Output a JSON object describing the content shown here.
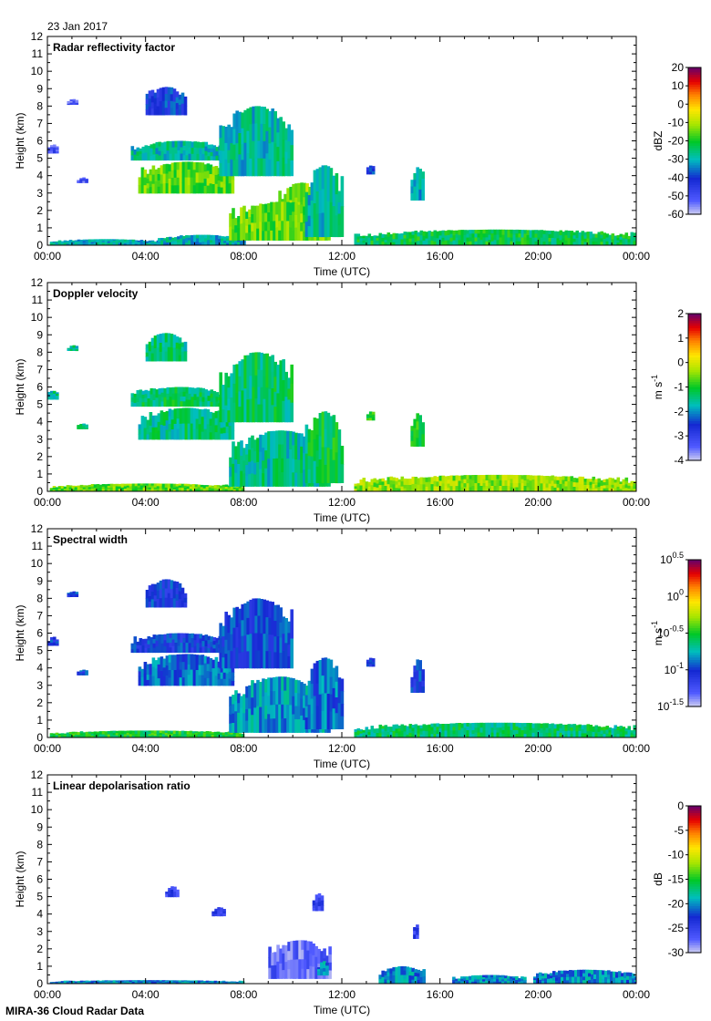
{
  "date_label": "23 Jan 2017",
  "footer_label": "MIRA-36 Cloud Radar Data",
  "chart_data": [
    {
      "type": "heatmap",
      "title": "Radar reflectivity factor",
      "xlabel": "Time (UTC)",
      "ylabel": "Height (km)",
      "xticks": [
        "00:00",
        "04:00",
        "08:00",
        "12:00",
        "16:00",
        "20:00",
        "00:00"
      ],
      "yticks": [
        "0",
        "1",
        "2",
        "3",
        "4",
        "5",
        "6",
        "7",
        "8",
        "9",
        "10",
        "11",
        "12"
      ],
      "ylim": [
        0,
        12
      ],
      "xlim_hours": [
        0,
        24
      ],
      "colorbar": {
        "label": "dBZ",
        "ticks": [
          "20",
          "10",
          "0",
          "-10",
          "-20",
          "-30",
          "-40",
          "-50",
          "-60"
        ],
        "min": -60,
        "max": 20
      },
      "blobs": [
        {
          "t0": 0.1,
          "t1": 4.5,
          "h0": 0.0,
          "h1": 0.35,
          "v": -30
        },
        {
          "t0": 4.5,
          "t1": 8.0,
          "h0": 0.0,
          "h1": 0.6,
          "v": -30
        },
        {
          "t0": 12.5,
          "t1": 24.0,
          "h0": 0.0,
          "h1": 0.9,
          "v": -22
        },
        {
          "t0": 3.4,
          "t1": 7.3,
          "h0": 4.9,
          "h1": 6.0,
          "v": -28
        },
        {
          "t0": 3.7,
          "t1": 7.6,
          "h0": 3.0,
          "h1": 4.8,
          "v": -15
        },
        {
          "t0": 4.0,
          "t1": 5.6,
          "h0": 7.5,
          "h1": 9.1,
          "v": -40
        },
        {
          "t0": 7.0,
          "t1": 10.0,
          "h0": 4.0,
          "h1": 8.0,
          "v": -28
        },
        {
          "t0": 9.3,
          "t1": 11.3,
          "h0": 0.3,
          "h1": 3.6,
          "v": -12
        },
        {
          "t0": 7.4,
          "t1": 11.5,
          "h0": 0.3,
          "h1": 2.5,
          "v": -15
        },
        {
          "t0": 10.5,
          "t1": 12.0,
          "h0": 0.5,
          "h1": 4.6,
          "v": -28
        },
        {
          "t0": 14.8,
          "t1": 15.3,
          "h0": 2.6,
          "h1": 4.5,
          "v": -30
        },
        {
          "t0": 13.0,
          "t1": 13.3,
          "h0": 4.1,
          "h1": 4.6,
          "v": -40
        },
        {
          "t0": 1.2,
          "t1": 1.6,
          "h0": 3.6,
          "h1": 3.9,
          "v": -50
        },
        {
          "t0": 0.8,
          "t1": 1.2,
          "h0": 8.1,
          "h1": 8.4,
          "v": -50
        },
        {
          "t0": 0.0,
          "t1": 0.35,
          "h0": 5.3,
          "h1": 5.8,
          "v": -50
        }
      ]
    },
    {
      "type": "heatmap",
      "title": "Doppler velocity",
      "xlabel": "Time (UTC)",
      "ylabel": "Height (km)",
      "xticks": [
        "00:00",
        "04:00",
        "08:00",
        "12:00",
        "16:00",
        "20:00",
        "00:00"
      ],
      "yticks": [
        "0",
        "1",
        "2",
        "3",
        "4",
        "5",
        "6",
        "7",
        "8",
        "9",
        "10",
        "11",
        "12"
      ],
      "ylim": [
        0,
        12
      ],
      "xlim_hours": [
        0,
        24
      ],
      "colorbar": {
        "label": "m s-1",
        "ticks": [
          "2",
          "1",
          "0",
          "-1",
          "-2",
          "-3",
          "-4"
        ],
        "min": -4,
        "max": 2
      },
      "blobs": [
        {
          "t0": 0.1,
          "t1": 8.0,
          "h0": 0.0,
          "h1": 0.45,
          "v": -0.6
        },
        {
          "t0": 12.5,
          "t1": 24.0,
          "h0": 0.0,
          "h1": 0.95,
          "v": -0.4
        },
        {
          "t0": 3.4,
          "t1": 7.3,
          "h0": 4.9,
          "h1": 6.0,
          "v": -1.3
        },
        {
          "t0": 3.7,
          "t1": 7.6,
          "h0": 3.0,
          "h1": 4.8,
          "v": -1.4
        },
        {
          "t0": 4.0,
          "t1": 5.6,
          "h0": 7.5,
          "h1": 9.1,
          "v": -1.4
        },
        {
          "t0": 7.0,
          "t1": 10.0,
          "h0": 4.0,
          "h1": 8.0,
          "v": -1.3
        },
        {
          "t0": 7.4,
          "t1": 11.5,
          "h0": 0.3,
          "h1": 3.5,
          "v": -1.5
        },
        {
          "t0": 10.5,
          "t1": 12.0,
          "h0": 0.5,
          "h1": 4.6,
          "v": -1.2
        },
        {
          "t0": 14.8,
          "t1": 15.3,
          "h0": 2.6,
          "h1": 4.5,
          "v": -1.0
        },
        {
          "t0": 13.0,
          "t1": 13.3,
          "h0": 4.1,
          "h1": 4.6,
          "v": -1.0
        },
        {
          "t0": 1.2,
          "t1": 1.6,
          "h0": 3.6,
          "h1": 3.9,
          "v": -1.5
        },
        {
          "t0": 0.8,
          "t1": 1.2,
          "h0": 8.1,
          "h1": 8.4,
          "v": -1.5
        },
        {
          "t0": 0.0,
          "t1": 0.35,
          "h0": 5.3,
          "h1": 5.8,
          "v": -1.5
        }
      ]
    },
    {
      "type": "heatmap",
      "title": "Spectral width",
      "xlabel": "Time (UTC)",
      "ylabel": "Height (km)",
      "xticks": [
        "00:00",
        "04:00",
        "08:00",
        "12:00",
        "16:00",
        "20:00",
        "00:00"
      ],
      "yticks": [
        "0",
        "1",
        "2",
        "3",
        "4",
        "5",
        "6",
        "7",
        "8",
        "9",
        "10",
        "11",
        "12"
      ],
      "ylim": [
        0,
        12
      ],
      "xlim_hours": [
        0,
        24
      ],
      "colorbar": {
        "label": "m s-1",
        "ticks": [
          "10^0.5",
          "10^0",
          "10^-0.5",
          "10^-1",
          "10^-1.5"
        ],
        "min": -1.5,
        "max": 0.5
      },
      "blobs": [
        {
          "t0": 0.1,
          "t1": 8.0,
          "h0": 0.0,
          "h1": 0.4,
          "v": -0.5
        },
        {
          "t0": 12.5,
          "t1": 24.0,
          "h0": 0.0,
          "h1": 0.85,
          "v": -0.6
        },
        {
          "t0": 3.4,
          "t1": 7.3,
          "h0": 4.9,
          "h1": 6.0,
          "v": -1.0
        },
        {
          "t0": 3.7,
          "t1": 7.6,
          "h0": 3.0,
          "h1": 4.8,
          "v": -0.9
        },
        {
          "t0": 4.0,
          "t1": 5.6,
          "h0": 7.5,
          "h1": 9.1,
          "v": -1.0
        },
        {
          "t0": 7.0,
          "t1": 10.0,
          "h0": 4.0,
          "h1": 8.0,
          "v": -0.95
        },
        {
          "t0": 7.4,
          "t1": 11.5,
          "h0": 0.3,
          "h1": 3.5,
          "v": -0.8
        },
        {
          "t0": 10.5,
          "t1": 12.0,
          "h0": 0.5,
          "h1": 4.6,
          "v": -0.9
        },
        {
          "t0": 14.8,
          "t1": 15.3,
          "h0": 2.6,
          "h1": 4.5,
          "v": -1.0
        },
        {
          "t0": 13.0,
          "t1": 13.3,
          "h0": 4.1,
          "h1": 4.6,
          "v": -1.0
        },
        {
          "t0": 1.2,
          "t1": 1.6,
          "h0": 3.6,
          "h1": 3.9,
          "v": -1.0
        },
        {
          "t0": 0.8,
          "t1": 1.2,
          "h0": 8.1,
          "h1": 8.4,
          "v": -1.0
        },
        {
          "t0": 0.0,
          "t1": 0.35,
          "h0": 5.3,
          "h1": 5.8,
          "v": -1.0
        }
      ]
    },
    {
      "type": "heatmap",
      "title": "Linear depolarisation ratio",
      "xlabel": "Time (UTC)",
      "ylabel": "Height (km)",
      "xticks": [
        "00:00",
        "04:00",
        "08:00",
        "12:00",
        "16:00",
        "20:00",
        "00:00"
      ],
      "yticks": [
        "0",
        "1",
        "2",
        "3",
        "4",
        "5",
        "6",
        "7",
        "8",
        "9",
        "10",
        "11",
        "12"
      ],
      "ylim": [
        0,
        12
      ],
      "xlim_hours": [
        0,
        24
      ],
      "colorbar": {
        "label": "dB",
        "ticks": [
          "0",
          "-5",
          "-10",
          "-15",
          "-20",
          "-25",
          "-30"
        ],
        "min": -30,
        "max": 0
      },
      "blobs": [
        {
          "t0": 0.1,
          "t1": 8.0,
          "h0": 0.0,
          "h1": 0.2,
          "v": -20
        },
        {
          "t0": 13.5,
          "t1": 15.3,
          "h0": 0.0,
          "h1": 1.0,
          "v": -20
        },
        {
          "t0": 19.8,
          "t1": 24.0,
          "h0": 0.0,
          "h1": 0.8,
          "v": -20
        },
        {
          "t0": 16.5,
          "t1": 19.5,
          "h0": 0.0,
          "h1": 0.5,
          "v": -20
        },
        {
          "t0": 9.0,
          "t1": 11.5,
          "h0": 0.3,
          "h1": 2.5,
          "v": -27
        },
        {
          "t0": 4.8,
          "t1": 5.3,
          "h0": 5.0,
          "h1": 5.6,
          "v": -25
        },
        {
          "t0": 6.7,
          "t1": 7.2,
          "h0": 3.9,
          "h1": 4.4,
          "v": -25
        },
        {
          "t0": 10.8,
          "t1": 11.2,
          "h0": 4.2,
          "h1": 5.2,
          "v": -25
        },
        {
          "t0": 11.0,
          "t1": 11.4,
          "h0": 0.5,
          "h1": 1.3,
          "v": -20
        },
        {
          "t0": 14.9,
          "t1": 15.1,
          "h0": 2.6,
          "h1": 3.4,
          "v": -25
        }
      ]
    }
  ]
}
